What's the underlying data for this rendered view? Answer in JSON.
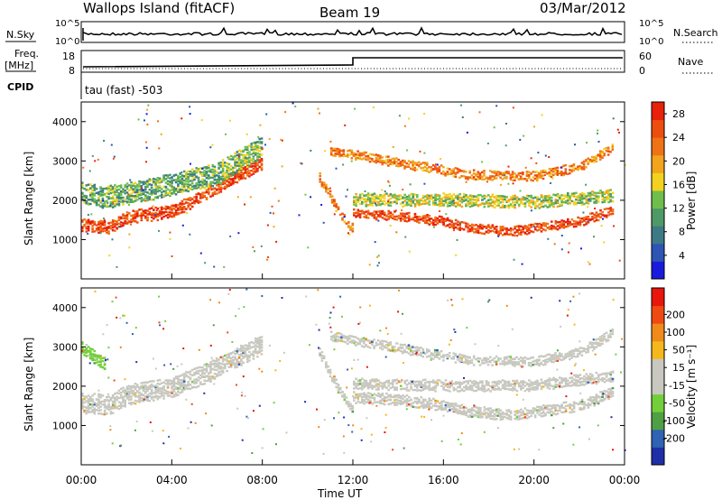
{
  "header": {
    "station": "Wallops Island (fitACF)",
    "beam": "Beam 19",
    "date": "03/Mar/2012"
  },
  "top_panels": {
    "nsky_label": "N.Sky",
    "nsearch_label": "N.Search",
    "noise_ticks": [
      "10^5",
      "10^0"
    ],
    "freq_label_1": "Freq.",
    "freq_label_2": "[MHz]",
    "freq_ticks": [
      "18",
      "8"
    ],
    "nave_label": "Nave",
    "nave_ticks": [
      "60",
      "0"
    ],
    "cpid_label": "CPID",
    "cpid_text": "tau (fast) -503"
  },
  "colors": {
    "power_scale": [
      "#1a1adf",
      "#2e54b4",
      "#3d7a86",
      "#4e9a66",
      "#6fbe4c",
      "#f2d21e",
      "#f1a41c",
      "#ef7216",
      "#ee4d10",
      "#e9200a"
    ],
    "velocity_scale": [
      "#1f2fa8",
      "#2f63b4",
      "#4f9f45",
      "#72cf3a",
      "#c8c8c0",
      "#c8c8c0",
      "#f4b81d",
      "#f08a1a",
      "#ef4a12",
      "#e8160c"
    ]
  },
  "chart_data": [
    {
      "type": "heatmap",
      "name": "Power panel",
      "ylabel": "Slant Range [km]",
      "yticks": [
        "4000",
        "3000",
        "2000",
        "1000"
      ],
      "ylim": [
        0,
        4500
      ],
      "xlim": [
        0,
        24
      ],
      "colorbar_label": "Power [dB]",
      "colorbar_ticks": [
        "28",
        "24",
        "20",
        "16",
        "12",
        "8",
        "4"
      ],
      "colorbar_range": [
        0,
        30
      ],
      "bands": [
        {
          "x": [
            0,
            1.2,
            2,
            4,
            5.5,
            7,
            8
          ],
          "y": [
            1400,
            1350,
            1600,
            1750,
            2200,
            2700,
            3000
          ],
          "width": 300,
          "value": 26
        },
        {
          "x": [
            0,
            1,
            3,
            6,
            8
          ],
          "y": [
            2200,
            2100,
            2300,
            2700,
            3400
          ],
          "width": 500,
          "value": 12
        },
        {
          "x": [
            10.5,
            11,
            11.5,
            12
          ],
          "y": [
            2600,
            2100,
            1600,
            1300
          ],
          "width": 200,
          "value": 22
        },
        {
          "x": [
            12,
            14,
            16,
            17,
            19,
            22,
            23.5
          ],
          "y": [
            1700,
            1650,
            1500,
            1350,
            1250,
            1500,
            1800
          ],
          "width": 220,
          "value": 26
        },
        {
          "x": [
            12,
            16,
            20,
            23.5
          ],
          "y": [
            2050,
            2050,
            2000,
            2150
          ],
          "width": 300,
          "value": 15
        },
        {
          "x": [
            11,
            12,
            15,
            17,
            20,
            22,
            23.5
          ],
          "y": [
            3300,
            3200,
            2900,
            2700,
            2650,
            2900,
            3400
          ],
          "width": 220,
          "value": 22
        }
      ]
    },
    {
      "type": "heatmap",
      "name": "Velocity panel",
      "ylabel": "Slant Range [km]",
      "yticks": [
        "4000",
        "3000",
        "2000",
        "1000"
      ],
      "ylim": [
        0,
        4500
      ],
      "xlabel": "Time UT",
      "xticks": [
        "00:00",
        "04:00",
        "08:00",
        "12:00",
        "16:00",
        "20:00",
        "00:00"
      ],
      "xlim": [
        0,
        24
      ],
      "colorbar_label": "Velocity [m s⁻¹]",
      "colorbar_ticks": [
        "200",
        "100",
        "50",
        "15",
        "-15",
        "-50",
        "-100",
        "-200"
      ],
      "colorbar_range": [
        -250,
        250
      ],
      "bands": [
        {
          "x": [
            0,
            1.2,
            2,
            4,
            5.5,
            7,
            8
          ],
          "y": [
            1600,
            1550,
            1800,
            2000,
            2350,
            2800,
            3100
          ],
          "width": 450,
          "value": 0
        },
        {
          "x": [
            0,
            0.5,
            1
          ],
          "y": [
            3000,
            2800,
            2600
          ],
          "width": 300,
          "value": -60
        },
        {
          "x": [
            10.5,
            11,
            11.5,
            12
          ],
          "y": [
            2900,
            2300,
            1800,
            1400
          ],
          "width": 200,
          "value": 40
        },
        {
          "x": [
            12,
            14,
            16,
            17,
            19,
            22,
            23.5
          ],
          "y": [
            1750,
            1700,
            1550,
            1400,
            1300,
            1550,
            1900
          ],
          "width": 260,
          "value": 0
        },
        {
          "x": [
            12,
            16,
            20,
            23.5
          ],
          "y": [
            2100,
            2050,
            2050,
            2300
          ],
          "width": 250,
          "value": 0
        },
        {
          "x": [
            11,
            12,
            15,
            17,
            20,
            22,
            23.5
          ],
          "y": [
            3300,
            3200,
            2900,
            2700,
            2650,
            2900,
            3400
          ],
          "width": 200,
          "value": 0
        }
      ]
    }
  ]
}
